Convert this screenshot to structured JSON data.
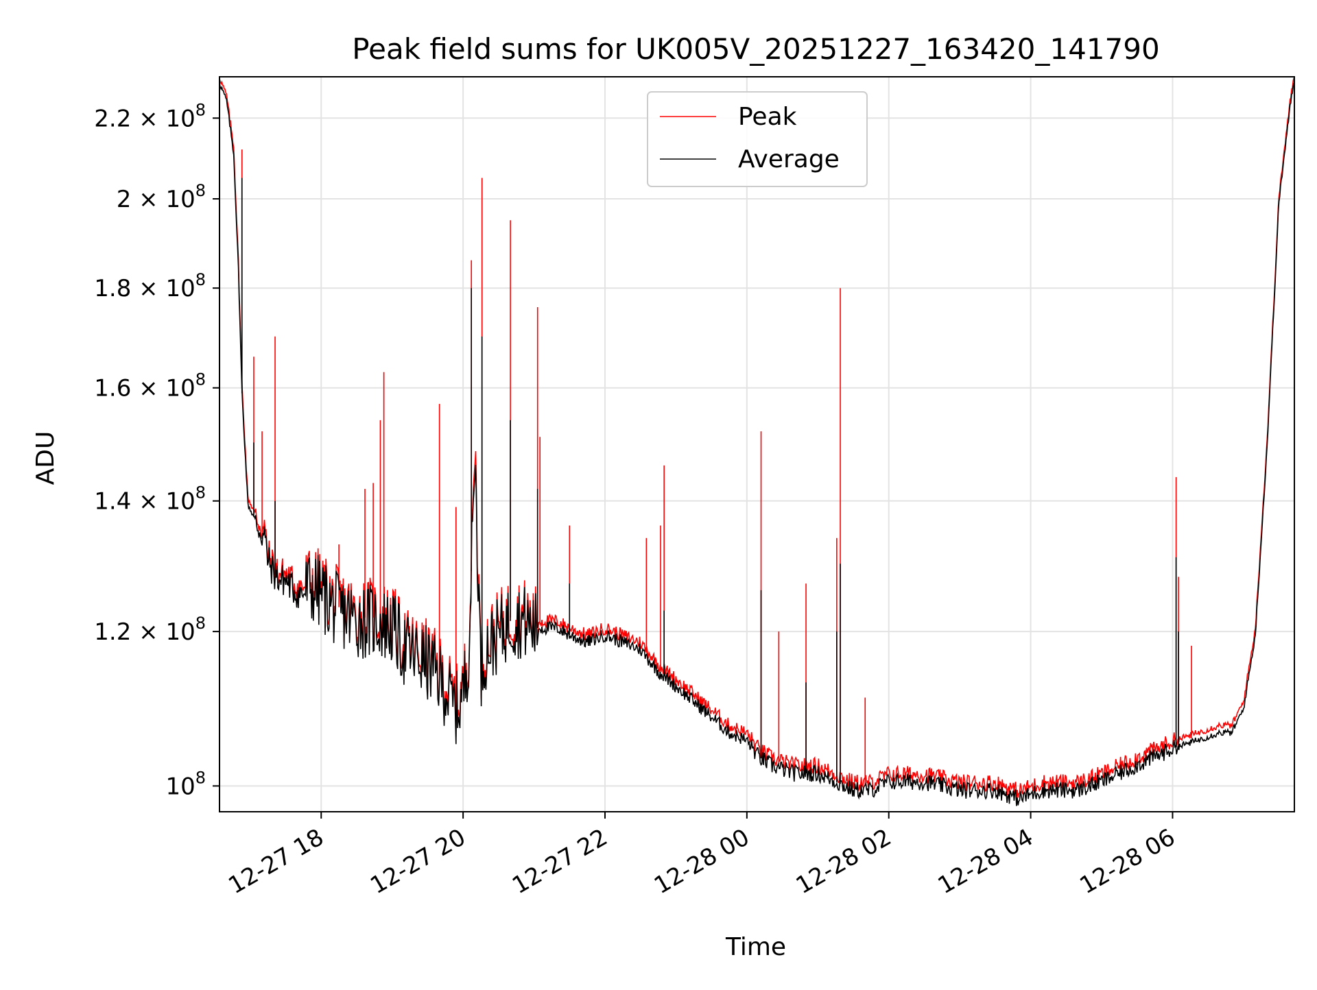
{
  "chart_data": {
    "type": "line",
    "title": "Peak field sums for UK005V_20251227_163420_141790",
    "xlabel": "Time",
    "ylabel": "ADU",
    "yscale": "log",
    "ylim": [
      97000000,
      231000000
    ],
    "xlim": [
      "2025-12-27 16:34",
      "2025-12-28 07:43"
    ],
    "grid": true,
    "legend_position": "upper center",
    "x_ticks": [
      {
        "t": "2025-12-27 18:00",
        "label": "12-27 18"
      },
      {
        "t": "2025-12-27 20:00",
        "label": "12-27 20"
      },
      {
        "t": "2025-12-27 22:00",
        "label": "12-27 22"
      },
      {
        "t": "2025-12-28 00:00",
        "label": "12-28 00"
      },
      {
        "t": "2025-12-28 02:00",
        "label": "12-28 02"
      },
      {
        "t": "2025-12-28 04:00",
        "label": "12-28 04"
      },
      {
        "t": "2025-12-28 06:00",
        "label": "12-28 06"
      }
    ],
    "y_ticks": [
      {
        "v": 100000000,
        "base": "10",
        "exp": "8"
      },
      {
        "v": 120000000,
        "base": "1.2 × 10",
        "exp": "8"
      },
      {
        "v": 140000000,
        "base": "1.4 × 10",
        "exp": "8"
      },
      {
        "v": 160000000,
        "base": "1.6 × 10",
        "exp": "8"
      },
      {
        "v": 180000000,
        "base": "1.8 × 10",
        "exp": "8"
      },
      {
        "v": 200000000,
        "base": "2 × 10",
        "exp": "8"
      },
      {
        "v": 220000000,
        "base": "2.2 × 10",
        "exp": "8"
      }
    ],
    "series": [
      {
        "name": "Peak",
        "color": "#ff0000",
        "x": [
          "2025-12-27 16:34",
          "2025-12-27 16:40",
          "2025-12-27 16:46",
          "2025-12-27 16:50",
          "2025-12-27 16:53",
          "2025-12-27 16:58",
          "2025-12-27 17:05",
          "2025-12-27 17:10",
          "2025-12-27 17:12",
          "2025-12-27 17:15",
          "2025-12-27 17:20",
          "2025-12-27 17:25",
          "2025-12-27 17:30",
          "2025-12-27 17:35",
          "2025-12-27 17:40",
          "2025-12-27 17:45",
          "2025-12-27 17:50",
          "2025-12-27 18:00",
          "2025-12-27 18:10",
          "2025-12-27 18:20",
          "2025-12-27 18:30",
          "2025-12-27 18:45",
          "2025-12-27 19:00",
          "2025-12-27 19:10",
          "2025-12-27 19:20",
          "2025-12-27 19:30",
          "2025-12-27 19:40",
          "2025-12-27 19:50",
          "2025-12-27 19:55",
          "2025-12-27 20:00",
          "2025-12-27 20:05",
          "2025-12-27 20:10",
          "2025-12-27 20:15",
          "2025-12-27 20:20",
          "2025-12-27 20:30",
          "2025-12-27 20:40",
          "2025-12-27 20:50",
          "2025-12-27 21:00",
          "2025-12-27 21:10",
          "2025-12-27 21:20",
          "2025-12-27 21:30",
          "2025-12-27 21:45",
          "2025-12-27 22:00",
          "2025-12-27 22:15",
          "2025-12-27 22:30",
          "2025-12-27 22:45",
          "2025-12-27 23:00",
          "2025-12-27 23:15",
          "2025-12-27 23:30",
          "2025-12-27 23:45",
          "2025-12-28 00:00",
          "2025-12-28 00:10",
          "2025-12-28 00:20",
          "2025-12-28 00:40",
          "2025-12-28 01:00",
          "2025-12-28 01:15",
          "2025-12-28 01:30",
          "2025-12-28 01:45",
          "2025-12-28 02:00",
          "2025-12-28 02:30",
          "2025-12-28 03:00",
          "2025-12-28 03:30",
          "2025-12-28 03:50",
          "2025-12-28 04:10",
          "2025-12-28 04:40",
          "2025-12-28 05:00",
          "2025-12-28 05:30",
          "2025-12-28 06:00",
          "2025-12-28 06:20",
          "2025-12-28 06:40",
          "2025-12-28 06:50",
          "2025-12-28 07:00",
          "2025-12-28 07:10",
          "2025-12-28 07:20",
          "2025-12-28 07:30",
          "2025-12-28 07:40",
          "2025-12-28 07:43"
        ],
        "values": [
          230000000,
          225000000,
          212000000,
          185000000,
          160000000,
          140000000,
          137000000,
          135000000,
          135000000,
          131000000,
          129000000,
          128000000,
          128000000,
          127000000,
          126000000,
          126000000,
          127000000,
          126000000,
          124000000,
          123000000,
          122000000,
          122000000,
          121000000,
          118000000,
          117000000,
          116000000,
          114000000,
          111000000,
          110000000,
          112000000,
          118000000,
          150000000,
          115000000,
          118000000,
          120000000,
          122000000,
          122000000,
          121000000,
          121000000,
          121000000,
          120000000,
          119000000,
          120000000,
          119000000,
          118000000,
          115000000,
          113000000,
          111000000,
          109000000,
          107000000,
          106000000,
          104000000,
          103000000,
          102000000,
          102000000,
          101000000,
          100000000,
          100000000,
          101000000,
          101000000,
          100000000,
          100000000,
          99000000,
          100000000,
          100000000,
          101000000,
          103000000,
          105000000,
          106000000,
          107000000,
          107000000,
          110000000,
          120000000,
          150000000,
          200000000,
          225000000,
          231000000
        ],
        "spikes": [
          {
            "t": "2025-12-27 16:53",
            "v": 212000000
          },
          {
            "t": "2025-12-27 17:03",
            "v": 166000000
          },
          {
            "t": "2025-12-27 17:10",
            "v": 152000000
          },
          {
            "t": "2025-12-27 17:21",
            "v": 170000000
          },
          {
            "t": "2025-12-27 18:15",
            "v": 133000000
          },
          {
            "t": "2025-12-27 18:37",
            "v": 142000000
          },
          {
            "t": "2025-12-27 18:44",
            "v": 143000000
          },
          {
            "t": "2025-12-27 18:50",
            "v": 154000000
          },
          {
            "t": "2025-12-27 18:53",
            "v": 163000000
          },
          {
            "t": "2025-12-27 19:40",
            "v": 157000000
          },
          {
            "t": "2025-12-27 19:54",
            "v": 139000000
          },
          {
            "t": "2025-12-27 20:07",
            "v": 186000000
          },
          {
            "t": "2025-12-27 20:16",
            "v": 205000000
          },
          {
            "t": "2025-12-27 20:40",
            "v": 195000000
          },
          {
            "t": "2025-12-27 21:03",
            "v": 176000000
          },
          {
            "t": "2025-12-27 21:05",
            "v": 151000000
          },
          {
            "t": "2025-12-27 21:30",
            "v": 136000000
          },
          {
            "t": "2025-12-27 22:35",
            "v": 134000000
          },
          {
            "t": "2025-12-27 22:47",
            "v": 136000000
          },
          {
            "t": "2025-12-27 22:50",
            "v": 146000000
          },
          {
            "t": "2025-12-28 00:12",
            "v": 152000000
          },
          {
            "t": "2025-12-28 00:27",
            "v": 120000000
          },
          {
            "t": "2025-12-28 00:50",
            "v": 127000000
          },
          {
            "t": "2025-12-28 01:16",
            "v": 134000000
          },
          {
            "t": "2025-12-28 01:19",
            "v": 180000000
          },
          {
            "t": "2025-12-28 01:40",
            "v": 111000000
          },
          {
            "t": "2025-12-28 06:03",
            "v": 144000000
          },
          {
            "t": "2025-12-28 06:05",
            "v": 128000000
          },
          {
            "t": "2025-12-28 06:16",
            "v": 118000000
          }
        ]
      },
      {
        "name": "Average",
        "color": "#000000",
        "x": [
          "2025-12-27 16:34",
          "2025-12-27 16:40",
          "2025-12-27 16:46",
          "2025-12-27 16:50",
          "2025-12-27 16:53",
          "2025-12-27 16:58",
          "2025-12-27 17:05",
          "2025-12-27 17:10",
          "2025-12-27 17:12",
          "2025-12-27 17:15",
          "2025-12-27 17:20",
          "2025-12-27 17:25",
          "2025-12-27 17:30",
          "2025-12-27 17:35",
          "2025-12-27 17:40",
          "2025-12-27 17:45",
          "2025-12-27 17:50",
          "2025-12-27 18:00",
          "2025-12-27 18:10",
          "2025-12-27 18:20",
          "2025-12-27 18:30",
          "2025-12-27 18:45",
          "2025-12-27 19:00",
          "2025-12-27 19:10",
          "2025-12-27 19:20",
          "2025-12-27 19:30",
          "2025-12-27 19:40",
          "2025-12-27 19:50",
          "2025-12-27 19:55",
          "2025-12-27 20:00",
          "2025-12-27 20:05",
          "2025-12-27 20:10",
          "2025-12-27 20:15",
          "2025-12-27 20:20",
          "2025-12-27 20:30",
          "2025-12-27 20:40",
          "2025-12-27 20:50",
          "2025-12-27 21:00",
          "2025-12-27 21:10",
          "2025-12-27 21:20",
          "2025-12-27 21:30",
          "2025-12-27 21:45",
          "2025-12-27 22:00",
          "2025-12-27 22:15",
          "2025-12-27 22:30",
          "2025-12-27 22:45",
          "2025-12-27 23:00",
          "2025-12-27 23:15",
          "2025-12-27 23:30",
          "2025-12-27 23:45",
          "2025-12-28 00:00",
          "2025-12-28 00:10",
          "2025-12-28 00:20",
          "2025-12-28 00:40",
          "2025-12-28 01:00",
          "2025-12-28 01:15",
          "2025-12-28 01:30",
          "2025-12-28 01:45",
          "2025-12-28 02:00",
          "2025-12-28 02:30",
          "2025-12-28 03:00",
          "2025-12-28 03:30",
          "2025-12-28 03:50",
          "2025-12-28 04:10",
          "2025-12-28 04:40",
          "2025-12-28 05:00",
          "2025-12-28 05:30",
          "2025-12-28 06:00",
          "2025-12-28 06:20",
          "2025-12-28 06:40",
          "2025-12-28 06:50",
          "2025-12-28 07:00",
          "2025-12-28 07:10",
          "2025-12-28 07:20",
          "2025-12-28 07:30",
          "2025-12-28 07:40",
          "2025-12-28 07:43"
        ],
        "values": [
          229500000,
          224500000,
          211000000,
          184000000,
          159000000,
          139500000,
          136500000,
          134500000,
          134500000,
          130500000,
          128500000,
          127500000,
          127500000,
          126500000,
          125500000,
          125500000,
          126500000,
          125500000,
          123500000,
          122500000,
          121500000,
          121500000,
          120500000,
          117500000,
          116500000,
          115500000,
          113500000,
          110500000,
          109500000,
          111500000,
          117500000,
          148000000,
          114500000,
          117500000,
          119500000,
          121500000,
          121500000,
          120500000,
          120500000,
          120500000,
          119500000,
          118500000,
          119500000,
          118500000,
          117500000,
          114500000,
          112500000,
          110500000,
          108500000,
          106500000,
          105500000,
          103500000,
          102500000,
          101500000,
          101500000,
          100500000,
          99500000,
          99500000,
          100500000,
          100500000,
          99500000,
          99500000,
          98500000,
          99500000,
          99500000,
          100500000,
          102500000,
          104500000,
          105500000,
          106500000,
          106500000,
          109500000,
          119500000,
          149500000,
          199500000,
          224500000,
          230500000
        ],
        "spikes": [
          {
            "t": "2025-12-27 16:53",
            "v": 205000000
          },
          {
            "t": "2025-12-27 17:03",
            "v": 150000000
          },
          {
            "t": "2025-12-27 17:21",
            "v": 140000000
          },
          {
            "t": "2025-12-27 20:07",
            "v": 180000000
          },
          {
            "t": "2025-12-27 20:16",
            "v": 170000000
          },
          {
            "t": "2025-12-27 20:40",
            "v": 154000000
          },
          {
            "t": "2025-12-27 21:03",
            "v": 142000000
          },
          {
            "t": "2025-12-27 21:30",
            "v": 127000000
          },
          {
            "t": "2025-12-27 22:50",
            "v": 123000000
          },
          {
            "t": "2025-12-28 00:12",
            "v": 126000000
          },
          {
            "t": "2025-12-28 00:50",
            "v": 113000000
          },
          {
            "t": "2025-12-28 01:16",
            "v": 120000000
          },
          {
            "t": "2025-12-28 01:19",
            "v": 130000000
          },
          {
            "t": "2025-12-28 06:03",
            "v": 131000000
          },
          {
            "t": "2025-12-28 06:05",
            "v": 120000000
          }
        ]
      }
    ]
  }
}
